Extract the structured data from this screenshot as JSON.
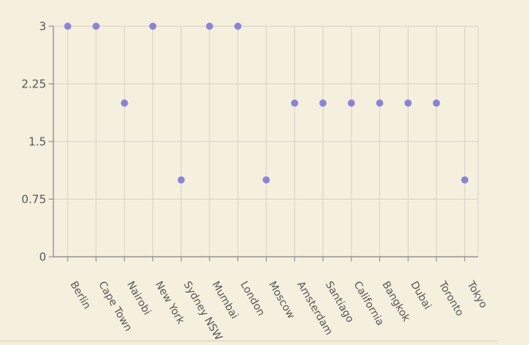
{
  "chart_data": {
    "type": "scatter",
    "title": "",
    "xlabel": "",
    "ylabel": "",
    "categories": [
      "Berlin",
      "Cape Town",
      "Nairobi",
      "New York",
      "Sydney NSW",
      "Mumbai",
      "London",
      "Moscow",
      "Amsterdam",
      "Santiago",
      "California",
      "Bangkok",
      "Dubai",
      "Toronto",
      "Tokyo"
    ],
    "values": [
      3,
      3,
      2,
      3,
      1,
      3,
      3,
      1,
      2,
      2,
      2,
      2,
      2,
      2,
      1
    ],
    "ylim": [
      0,
      3
    ],
    "yticks": [
      "0",
      "0.75",
      "1.5",
      "2.25",
      "3"
    ],
    "grid": true,
    "legend": "none",
    "colors": {
      "point": "#8a84d6",
      "grid": "#d6d2c6",
      "axis": "#888888",
      "background": "#f5f0de"
    }
  }
}
